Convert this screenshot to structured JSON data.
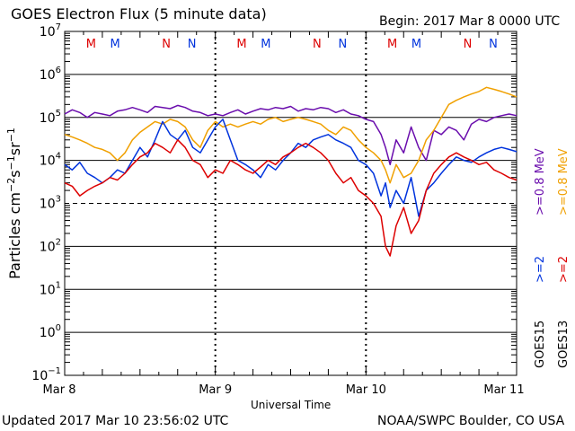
{
  "header": {
    "title": "GOES Electron Flux (5 minute data)",
    "begin": "Begin: 2017 Mar 8 0000 UTC"
  },
  "footer": {
    "updated": "Updated 2017 Mar 10 23:56:02 UTC",
    "credit": "NOAA/SWPC Boulder, CO USA"
  },
  "colors": {
    "goes15_low": "#6a0dad",
    "goes13_low": "#f0a000",
    "goes15_high": "#0033dd",
    "goes13_high": "#dd0000",
    "midnight_marker_M": "#dd0000",
    "midnight_marker_M2": "#0033dd",
    "noon_marker_N": "#dd0000",
    "noon_marker_N2": "#0033dd"
  },
  "chart_data": {
    "type": "line",
    "title": "GOES Electron Flux (5 minute data)",
    "xlabel": "Universal Time",
    "ylabel": "Particles cm-2 s-1 sr-1",
    "y_scale": "log",
    "ylim": [
      0.1,
      10000000
    ],
    "xlim": [
      0,
      3
    ],
    "x_tick_labels": [
      "Mar 8",
      "Mar 9",
      "Mar 10",
      "Mar 11"
    ],
    "y_tick_exponents": [
      -1,
      0,
      1,
      2,
      3,
      4,
      5,
      6,
      7
    ],
    "y_tick_base": "10",
    "threshold_line": 1000,
    "orbit_markers": [
      {
        "label": "M",
        "x": 0.33,
        "color": "#dd0000"
      },
      {
        "label": "M",
        "x": 0.49,
        "color": "#0033dd"
      },
      {
        "label": "N",
        "x": 0.83,
        "color": "#dd0000"
      },
      {
        "label": "N",
        "x": 1.0,
        "color": "#0033dd"
      },
      {
        "label": "M",
        "x": 1.33,
        "color": "#dd0000"
      },
      {
        "label": "M",
        "x": 1.49,
        "color": "#0033dd"
      },
      {
        "label": "N",
        "x": 1.83,
        "color": "#dd0000"
      },
      {
        "label": "N",
        "x": 2.0,
        "color": "#0033dd"
      },
      {
        "label": "M",
        "x": 2.33,
        "color": "#dd0000"
      },
      {
        "label": "M",
        "x": 2.49,
        "color": "#0033dd"
      },
      {
        "label": "N",
        "x": 2.83,
        "color": "#dd0000"
      },
      {
        "label": "N",
        "x": 3.0,
        "color": "#0033dd"
      }
    ],
    "right_legend": {
      "low_energy": ">=0.8 MeV",
      "high_energy": ">=2",
      "sat_a": "GOES15",
      "sat_b": "GOES13"
    },
    "series": [
      {
        "name": "GOES15 >=0.8 MeV",
        "color": "#6a0dad",
        "x": [
          0,
          0.05,
          0.1,
          0.15,
          0.2,
          0.25,
          0.3,
          0.35,
          0.4,
          0.45,
          0.5,
          0.55,
          0.6,
          0.65,
          0.7,
          0.75,
          0.8,
          0.85,
          0.9,
          0.95,
          1.0,
          1.05,
          1.1,
          1.15,
          1.2,
          1.25,
          1.3,
          1.35,
          1.4,
          1.45,
          1.5,
          1.55,
          1.6,
          1.65,
          1.7,
          1.75,
          1.8,
          1.85,
          1.9,
          1.95,
          2.0,
          2.05,
          2.1,
          2.13,
          2.16,
          2.2,
          2.25,
          2.3,
          2.35,
          2.4,
          2.45,
          2.5,
          2.55,
          2.6,
          2.65,
          2.7,
          2.75,
          2.8,
          2.85,
          2.9,
          2.95,
          3.0
        ],
        "y": [
          120000,
          150000,
          130000,
          100000,
          130000,
          120000,
          110000,
          140000,
          150000,
          170000,
          150000,
          130000,
          180000,
          170000,
          160000,
          190000,
          170000,
          140000,
          130000,
          110000,
          120000,
          110000,
          130000,
          150000,
          120000,
          140000,
          160000,
          150000,
          170000,
          160000,
          180000,
          140000,
          160000,
          150000,
          170000,
          160000,
          130000,
          150000,
          120000,
          110000,
          90000,
          80000,
          40000,
          20000,
          8000,
          30000,
          15000,
          60000,
          20000,
          10000,
          50000,
          40000,
          60000,
          50000,
          30000,
          70000,
          90000,
          80000,
          100000,
          110000,
          120000,
          110000
        ]
      },
      {
        "name": "GOES13 >=0.8 MeV",
        "color": "#f0a000",
        "x": [
          0,
          0.05,
          0.1,
          0.15,
          0.2,
          0.25,
          0.3,
          0.35,
          0.4,
          0.45,
          0.5,
          0.55,
          0.6,
          0.65,
          0.7,
          0.75,
          0.8,
          0.85,
          0.9,
          0.95,
          1.0,
          1.05,
          1.1,
          1.15,
          1.2,
          1.25,
          1.3,
          1.35,
          1.4,
          1.45,
          1.5,
          1.55,
          1.6,
          1.65,
          1.7,
          1.75,
          1.8,
          1.85,
          1.9,
          1.95,
          2.0,
          2.05,
          2.1,
          2.13,
          2.16,
          2.2,
          2.25,
          2.3,
          2.35,
          2.4,
          2.45,
          2.5,
          2.55,
          2.6,
          2.65,
          2.7,
          2.75,
          2.8,
          2.85,
          2.9,
          2.95,
          3.0
        ],
        "y": [
          40000,
          35000,
          30000,
          25000,
          20000,
          18000,
          15000,
          10000,
          15000,
          30000,
          45000,
          60000,
          80000,
          70000,
          90000,
          80000,
          60000,
          30000,
          20000,
          50000,
          80000,
          60000,
          70000,
          60000,
          70000,
          80000,
          70000,
          90000,
          100000,
          80000,
          90000,
          100000,
          90000,
          80000,
          70000,
          50000,
          40000,
          60000,
          50000,
          30000,
          20000,
          15000,
          10000,
          6000,
          3000,
          8000,
          4000,
          5000,
          10000,
          30000,
          50000,
          100000,
          200000,
          250000,
          300000,
          350000,
          400000,
          500000,
          450000,
          400000,
          350000,
          300000
        ]
      },
      {
        "name": "GOES15 >=2 MeV",
        "color": "#0033dd",
        "x": [
          0,
          0.05,
          0.1,
          0.15,
          0.2,
          0.25,
          0.3,
          0.35,
          0.4,
          0.45,
          0.5,
          0.55,
          0.6,
          0.65,
          0.7,
          0.75,
          0.8,
          0.85,
          0.9,
          0.95,
          1.0,
          1.05,
          1.1,
          1.15,
          1.2,
          1.25,
          1.3,
          1.35,
          1.4,
          1.45,
          1.5,
          1.55,
          1.6,
          1.65,
          1.7,
          1.75,
          1.8,
          1.85,
          1.9,
          1.95,
          2.0,
          2.05,
          2.1,
          2.13,
          2.16,
          2.2,
          2.25,
          2.3,
          2.35,
          2.4,
          2.45,
          2.5,
          2.55,
          2.6,
          2.65,
          2.7,
          2.75,
          2.8,
          2.85,
          2.9,
          2.95,
          3.0
        ],
        "y": [
          8000,
          6000,
          9000,
          5000,
          4000,
          3000,
          4000,
          6000,
          5000,
          10000,
          20000,
          12000,
          30000,
          80000,
          40000,
          30000,
          50000,
          20000,
          15000,
          30000,
          60000,
          90000,
          30000,
          10000,
          8000,
          6000,
          4000,
          8000,
          6000,
          10000,
          15000,
          25000,
          20000,
          30000,
          35000,
          40000,
          30000,
          25000,
          20000,
          10000,
          8000,
          5000,
          1500,
          3000,
          800,
          2000,
          1000,
          4000,
          500,
          2000,
          3000,
          5000,
          8000,
          12000,
          10000,
          9000,
          12000,
          15000,
          18000,
          20000,
          18000,
          16000
        ]
      },
      {
        "name": "GOES13 >=2 MeV",
        "color": "#dd0000",
        "x": [
          0,
          0.05,
          0.1,
          0.15,
          0.2,
          0.25,
          0.3,
          0.35,
          0.4,
          0.45,
          0.5,
          0.55,
          0.6,
          0.65,
          0.7,
          0.75,
          0.8,
          0.85,
          0.9,
          0.95,
          1.0,
          1.05,
          1.1,
          1.15,
          1.2,
          1.25,
          1.3,
          1.35,
          1.4,
          1.45,
          1.5,
          1.55,
          1.6,
          1.65,
          1.7,
          1.75,
          1.8,
          1.85,
          1.9,
          1.95,
          2.0,
          2.05,
          2.1,
          2.13,
          2.16,
          2.2,
          2.25,
          2.3,
          2.35,
          2.4,
          2.45,
          2.5,
          2.55,
          2.6,
          2.65,
          2.7,
          2.75,
          2.8,
          2.85,
          2.9,
          2.95,
          3.0
        ],
        "y": [
          3000,
          2500,
          1500,
          2000,
          2500,
          3000,
          4000,
          3500,
          5000,
          8000,
          12000,
          15000,
          25000,
          20000,
          15000,
          30000,
          20000,
          10000,
          8000,
          4000,
          6000,
          5000,
          10000,
          8000,
          6000,
          5000,
          7000,
          10000,
          8000,
          12000,
          15000,
          20000,
          25000,
          20000,
          15000,
          10000,
          5000,
          3000,
          4000,
          2000,
          1500,
          1000,
          500,
          100,
          60,
          300,
          800,
          200,
          400,
          2000,
          5000,
          8000,
          12000,
          15000,
          12000,
          10000,
          8000,
          9000,
          6000,
          5000,
          4000,
          3500
        ]
      }
    ]
  }
}
